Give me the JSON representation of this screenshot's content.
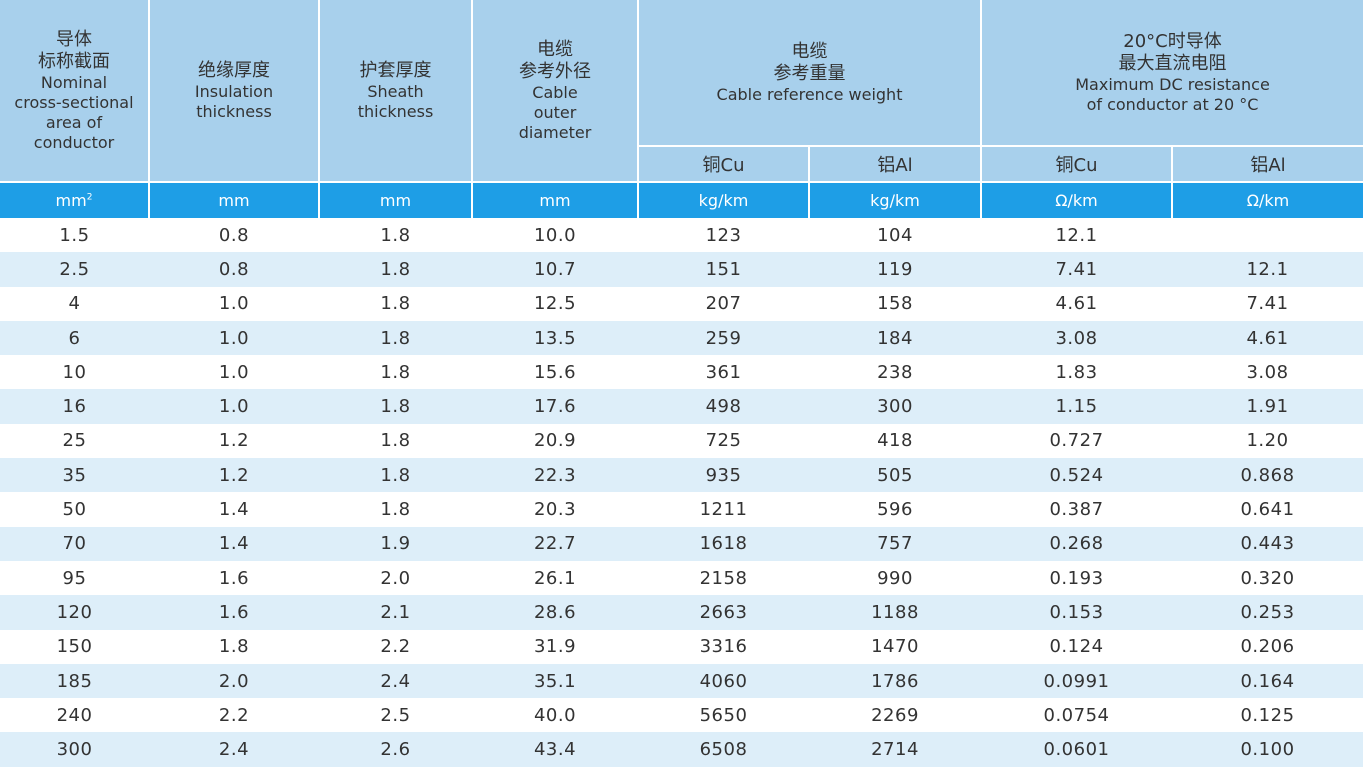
{
  "header": {
    "col1": {
      "zh1": "导体",
      "zh2": "标称截面",
      "en1": "Nominal",
      "en2": "cross-sectional",
      "en3": "area of",
      "en4": "conductor"
    },
    "col2": {
      "zh": "绝缘厚度",
      "en1": "Insulation",
      "en2": "thickness"
    },
    "col3": {
      "zh": "护套厚度",
      "en1": "Sheath",
      "en2": "thickness"
    },
    "col4": {
      "zh1": "电缆",
      "zh2": "参考外径",
      "en1": "Cable",
      "en2": "outer",
      "en3": "diameter"
    },
    "col5": {
      "zh1": "电缆",
      "zh2": "参考重量",
      "en": "Cable reference weight"
    },
    "col6": {
      "zh1": "20°C时导体",
      "zh2": "最大直流电阻",
      "en1": "Maximum DC resistance",
      "en2": "of conductor at 20 °C"
    },
    "sub": [
      "铜Cu",
      "铝Al",
      "铜Cu",
      "铝Al"
    ]
  },
  "units": {
    "area": "mm",
    "area_sup": "2",
    "ins": "mm",
    "sheath": "mm",
    "od": "mm",
    "wcu": "kg/km",
    "wal": "kg/km",
    "rcu": "Ω/km",
    "ral": "Ω/km"
  },
  "rows": [
    [
      "1.5",
      "0.8",
      "1.8",
      "10.0",
      "123",
      "104",
      "12.1",
      ""
    ],
    [
      "2.5",
      "0.8",
      "1.8",
      "10.7",
      "151",
      "119",
      "7.41",
      "12.1"
    ],
    [
      "4",
      "1.0",
      "1.8",
      "12.5",
      "207",
      "158",
      "4.61",
      "7.41"
    ],
    [
      "6",
      "1.0",
      "1.8",
      "13.5",
      "259",
      "184",
      "3.08",
      "4.61"
    ],
    [
      "10",
      "1.0",
      "1.8",
      "15.6",
      "361",
      "238",
      "1.83",
      "3.08"
    ],
    [
      "16",
      "1.0",
      "1.8",
      "17.6",
      "498",
      "300",
      "1.15",
      "1.91"
    ],
    [
      "25",
      "1.2",
      "1.8",
      "20.9",
      "725",
      "418",
      "0.727",
      "1.20"
    ],
    [
      "35",
      "1.2",
      "1.8",
      "22.3",
      "935",
      "505",
      "0.524",
      "0.868"
    ],
    [
      "50",
      "1.4",
      "1.8",
      "20.3",
      "1211",
      "596",
      "0.387",
      "0.641"
    ],
    [
      "70",
      "1.4",
      "1.9",
      "22.7",
      "1618",
      "757",
      "0.268",
      "0.443"
    ],
    [
      "95",
      "1.6",
      "2.0",
      "26.1",
      "2158",
      "990",
      "0.193",
      "0.320"
    ],
    [
      "120",
      "1.6",
      "2.1",
      "28.6",
      "2663",
      "1188",
      "0.153",
      "0.253"
    ],
    [
      "150",
      "1.8",
      "2.2",
      "31.9",
      "3316",
      "1470",
      "0.124",
      "0.206"
    ],
    [
      "185",
      "2.0",
      "2.4",
      "35.1",
      "4060",
      "1786",
      "0.0991",
      "0.164"
    ],
    [
      "240",
      "2.2",
      "2.5",
      "40.0",
      "5650",
      "2269",
      "0.0754",
      "0.125"
    ],
    [
      "300",
      "2.4",
      "2.6",
      "43.4",
      "6508",
      "2714",
      "0.0601",
      "0.100"
    ]
  ],
  "colors": {
    "header_bg": "#a8d0ec",
    "unit_bg": "#1e9ee6",
    "stripe_bg": "#ddeef9"
  }
}
